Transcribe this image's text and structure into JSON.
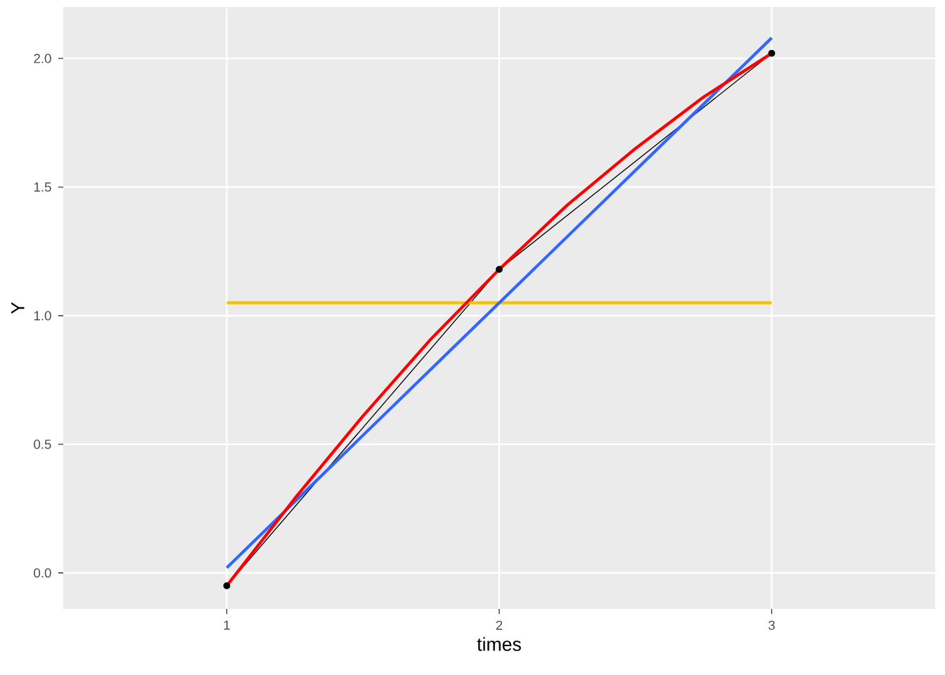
{
  "chart_data": {
    "type": "line",
    "xlabel": "times",
    "ylabel": "Y",
    "x": [
      1,
      2,
      3
    ],
    "series": [
      {
        "color": "#000000",
        "values": [
          -0.05,
          1.18,
          2.02
        ],
        "marker": "circle"
      },
      {
        "color": "#f8c000",
        "x": [
          1,
          3
        ],
        "values": [
          1.05,
          1.05
        ],
        "marker": "none"
      },
      {
        "color": "#3366ff",
        "x": [
          1,
          3
        ],
        "values": [
          0.02,
          2.08
        ],
        "marker": "none"
      },
      {
        "color": "#ff0000",
        "x": [
          1,
          1.25,
          1.5,
          1.75,
          2,
          2.25,
          2.5,
          2.75,
          3
        ],
        "values": [
          -0.05,
          0.29,
          0.61,
          0.91,
          1.18,
          1.43,
          1.65,
          1.85,
          2.02
        ],
        "marker": "none"
      }
    ],
    "xlim": [
      0.4,
      3.6
    ],
    "ylim": [
      -0.14,
      2.2
    ],
    "xticks": [
      1,
      2,
      3
    ],
    "yticks": [
      {
        "value": 0,
        "label": "0.0"
      },
      {
        "value": 0.5,
        "label": "0.5"
      },
      {
        "value": 1,
        "label": "1.0"
      },
      {
        "value": 1.5,
        "label": "1.5"
      },
      {
        "value": 2,
        "label": "2.0"
      }
    ],
    "grid": true
  }
}
